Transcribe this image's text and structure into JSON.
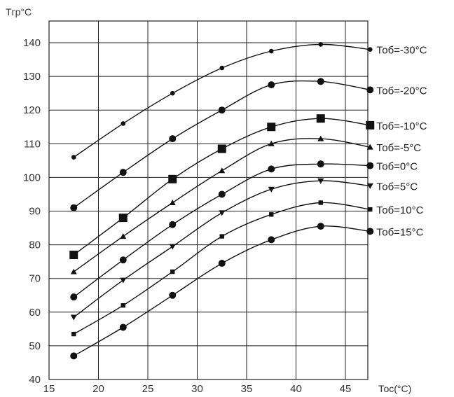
{
  "chart_data": {
    "type": "line",
    "title": "",
    "ylabel": "Tгр°C",
    "xlabel": "Тос(°C)",
    "xlim": [
      15,
      50
    ],
    "ylim": [
      40,
      140
    ],
    "xticks": [
      15,
      20,
      25,
      30,
      35,
      40,
      45
    ],
    "yticks": [
      40,
      50,
      60,
      70,
      80,
      90,
      100,
      110,
      120,
      130,
      140
    ],
    "grid": true,
    "x": [
      17.5,
      22.5,
      27.5,
      32.5,
      37.5,
      42.5,
      47.5
    ],
    "series": [
      {
        "name": "Тоб=-30°C",
        "marker": "dot-small",
        "values": [
          106,
          116,
          125,
          132.5,
          137.5,
          139.5,
          138
        ]
      },
      {
        "name": "Тоб=-20°C",
        "marker": "dot",
        "values": [
          91,
          101.5,
          111.5,
          120,
          127.5,
          128.5,
          126
        ]
      },
      {
        "name": "Тоб=-10°C",
        "marker": "square",
        "values": [
          77,
          88,
          99.5,
          108.5,
          115,
          117.5,
          115.5
        ]
      },
      {
        "name": "Тоб=-5°C",
        "marker": "triangle-up",
        "values": [
          72,
          82.5,
          92.5,
          102,
          110,
          111.5,
          109
        ]
      },
      {
        "name": "Тоб=0°C",
        "marker": "dot",
        "values": [
          64.5,
          75.5,
          86,
          95,
          102.5,
          104,
          103.5
        ]
      },
      {
        "name": "Тоб=5°C",
        "marker": "triangle-down",
        "values": [
          58.5,
          69.5,
          79.5,
          89.5,
          96.5,
          99,
          97.5
        ]
      },
      {
        "name": "Тоб=10°C",
        "marker": "square-small",
        "values": [
          53.5,
          62,
          72,
          82.5,
          89,
          92.5,
          90.5
        ]
      },
      {
        "name": "Тоб=15°C",
        "marker": "dot",
        "values": [
          47,
          55.5,
          65,
          74.5,
          81.5,
          85.5,
          84
        ]
      }
    ]
  }
}
